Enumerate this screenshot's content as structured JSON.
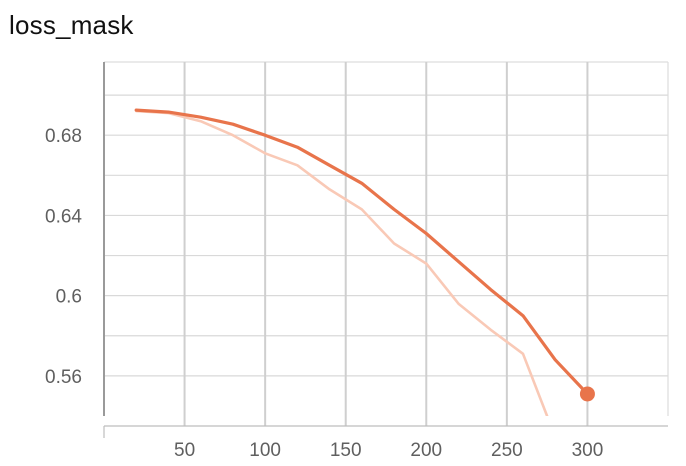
{
  "chart_data": {
    "type": "line",
    "title": "loss_mask",
    "xlabel": "",
    "ylabel": "",
    "xlim": [
      0,
      350
    ],
    "ylim": [
      0.54,
      0.7165
    ],
    "x_ticks": [
      50,
      100,
      150,
      200,
      250,
      300
    ],
    "x_tick_labels": [
      "50",
      "100",
      "150",
      "200",
      "250",
      "300"
    ],
    "y_ticks": [
      0.56,
      0.6,
      0.64,
      0.68
    ],
    "y_tick_labels": [
      "0.56",
      "0.6",
      "0.64",
      "0.68"
    ],
    "grid": true,
    "legend": "none",
    "series": [
      {
        "role": "raw",
        "color": "#f9c9b6",
        "x": [
          20,
          40,
          60,
          80,
          100,
          120,
          140,
          160,
          180,
          200,
          220,
          240,
          260,
          275
        ],
        "y": [
          0.692,
          0.691,
          0.687,
          0.68,
          0.671,
          0.665,
          0.653,
          0.643,
          0.626,
          0.616,
          0.596,
          0.583,
          0.571,
          0.54
        ]
      },
      {
        "role": "smoothed",
        "color": "#e8744b",
        "x": [
          20,
          40,
          60,
          80,
          100,
          120,
          140,
          160,
          180,
          200,
          220,
          240,
          260,
          280,
          300
        ],
        "y": [
          0.6925,
          0.6915,
          0.689,
          0.6855,
          0.68,
          0.674,
          0.665,
          0.656,
          0.643,
          0.631,
          0.617,
          0.603,
          0.59,
          0.568,
          0.551
        ]
      }
    ],
    "highlight_point": {
      "x": 300,
      "y": 0.551,
      "color": "#e8744b"
    }
  }
}
